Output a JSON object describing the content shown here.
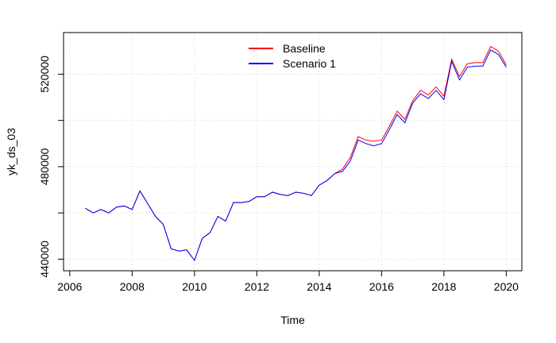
{
  "chart_data": {
    "type": "line",
    "xlabel": "Time",
    "ylabel": "yk_ds_03",
    "xlim": [
      2005.8,
      2020.5
    ],
    "ylim": [
      435000,
      538000
    ],
    "x_ticks": [
      2006,
      2008,
      2010,
      2012,
      2014,
      2016,
      2018,
      2020
    ],
    "x_tick_labels": [
      "2006",
      "2008",
      "2010",
      "2012",
      "2014",
      "2016",
      "2018",
      "2020"
    ],
    "y_ticks": [
      440000,
      460000,
      480000,
      500000,
      520000
    ],
    "y_tick_labels": [
      "440000",
      "",
      "480000",
      "",
      "520000"
    ],
    "grid": true,
    "legend_position": "top-center",
    "x": [
      2006.5,
      2006.75,
      2007.0,
      2007.25,
      2007.5,
      2007.75,
      2008.0,
      2008.25,
      2008.5,
      2008.75,
      2009.0,
      2009.25,
      2009.5,
      2009.75,
      2010.0,
      2010.25,
      2010.5,
      2010.75,
      2011.0,
      2011.25,
      2011.5,
      2011.75,
      2012.0,
      2012.25,
      2012.5,
      2012.75,
      2013.0,
      2013.25,
      2013.5,
      2013.75,
      2014.0,
      2014.25,
      2014.5,
      2014.75,
      2015.0,
      2015.25,
      2015.5,
      2015.75,
      2016.0,
      2016.25,
      2016.5,
      2016.75,
      2017.0,
      2017.25,
      2017.5,
      2017.75,
      2018.0,
      2018.25,
      2018.5,
      2018.75,
      2019.0,
      2019.25,
      2019.5,
      2019.75,
      2020.0
    ],
    "series": [
      {
        "name": "Baseline",
        "color": "#ff0000",
        "values": [
          462000,
          460000,
          461500,
          460000,
          462500,
          463000,
          461500,
          469500,
          464000,
          458500,
          455000,
          444500,
          443500,
          444000,
          439500,
          449000,
          451500,
          458500,
          456500,
          464500,
          464500,
          465000,
          467000,
          467000,
          469000,
          468000,
          467500,
          469000,
          468500,
          467500,
          472000,
          474000,
          477000,
          479000,
          484000,
          493000,
          491500,
          491000,
          491500,
          497500,
          504000,
          500500,
          508500,
          513000,
          511000,
          514500,
          510500,
          526500,
          519000,
          524500,
          525000,
          525000,
          532000,
          530000,
          524000
        ]
      },
      {
        "name": "Scenario 1",
        "color": "#0000ff",
        "values": [
          462000,
          460000,
          461500,
          460000,
          462500,
          463000,
          461500,
          469500,
          464000,
          458500,
          455000,
          444500,
          443500,
          444000,
          439500,
          449000,
          451500,
          458500,
          456500,
          464500,
          464500,
          465000,
          467000,
          467000,
          469000,
          468000,
          467500,
          469000,
          468500,
          467500,
          472000,
          474000,
          477000,
          478000,
          482500,
          491500,
          490000,
          489000,
          490000,
          496000,
          502500,
          499000,
          507500,
          511500,
          509500,
          513000,
          509000,
          525500,
          517500,
          523000,
          523500,
          523500,
          530500,
          528500,
          523000
        ]
      }
    ]
  }
}
